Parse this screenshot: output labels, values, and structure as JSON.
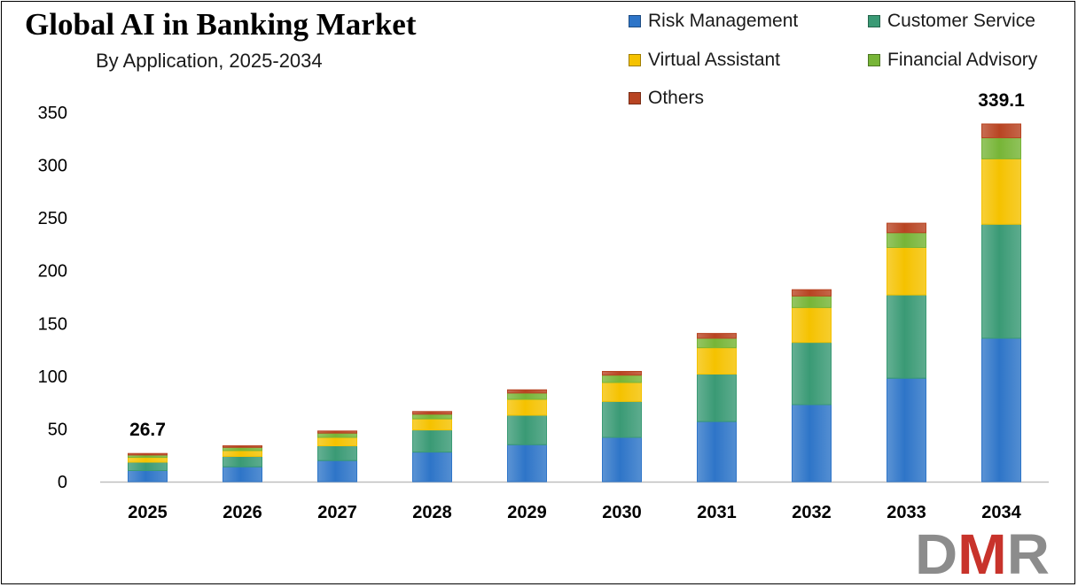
{
  "chart_data": {
    "type": "bar",
    "stacked": true,
    "title": "Global AI in Banking Market",
    "subtitle": "By Application, 2025-2034",
    "xlabel": "",
    "ylabel": "",
    "ylim": [
      0,
      350
    ],
    "yticks": [
      0,
      50,
      100,
      150,
      200,
      250,
      300,
      350
    ],
    "grid": false,
    "legend_position": "top-right",
    "categories": [
      "2025",
      "2026",
      "2027",
      "2028",
      "2029",
      "2030",
      "2031",
      "2032",
      "2033",
      "2034"
    ],
    "series": [
      {
        "name": "Risk Management",
        "color": "#2e75c8",
        "values": [
          10.5,
          14,
          20,
          28,
          35,
          42,
          57,
          73,
          98,
          136
        ]
      },
      {
        "name": "Customer Service",
        "color": "#3a9a75",
        "values": [
          8,
          10,
          14,
          21,
          28,
          34,
          45,
          59,
          79,
          108
        ]
      },
      {
        "name": "Virtual Assistant",
        "color": "#f5c200",
        "values": [
          4.5,
          5.5,
          8,
          10.5,
          15,
          18,
          25,
          33,
          45,
          62
        ]
      },
      {
        "name": "Financial Advisory",
        "color": "#77b537",
        "values": [
          2.3,
          3,
          4,
          4.5,
          6,
          7,
          9,
          11,
          14,
          20
        ]
      },
      {
        "name": "Others",
        "color": "#b84422",
        "values": [
          1.4,
          1.5,
          2,
          2.5,
          3,
          3.5,
          4.5,
          6,
          9,
          13.1
        ]
      }
    ],
    "annotations": [
      {
        "category": "2025",
        "text": "26.7"
      },
      {
        "category": "2034",
        "text": "339.1"
      }
    ]
  },
  "logo": {
    "text": "DMR",
    "colors": [
      "#8c8c8c",
      "#c8332b"
    ]
  }
}
